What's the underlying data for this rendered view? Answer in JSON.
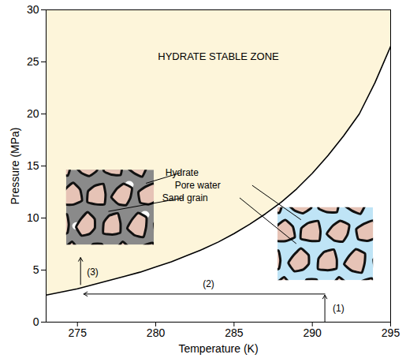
{
  "chart_data": {
    "type": "line",
    "x_label": "Temperature (K)",
    "y_label": "Pressure (MPa)",
    "xlim": [
      273,
      295
    ],
    "ylim": [
      0,
      30
    ],
    "xticks": [
      275,
      280,
      285,
      290,
      295
    ],
    "yticks": [
      0,
      5,
      10,
      15,
      20,
      25,
      30
    ],
    "grid": false,
    "color": "#000000",
    "x": [
      273,
      274,
      275,
      276,
      277,
      278,
      279,
      280,
      281,
      282,
      283,
      284,
      285,
      286,
      287,
      288,
      289,
      290,
      291,
      292,
      293,
      294,
      295
    ],
    "values": [
      2.6,
      2.9,
      3.2,
      3.6,
      4.0,
      4.4,
      4.8,
      5.3,
      5.8,
      6.4,
      7.0,
      7.7,
      8.5,
      9.4,
      10.4,
      11.5,
      12.8,
      14.3,
      16.0,
      17.9,
      20.0,
      23.0,
      26.5
    ],
    "region": {
      "label": "HYDRATE STABLE ZONE",
      "color": "#fdf5da",
      "x": 284,
      "y": 25.5
    },
    "arrows": [
      {
        "label": "(1)",
        "x1": 290.8,
        "y1": 0,
        "x2": 290.8,
        "y2": 2.6,
        "label_x": 291.3,
        "label_y": 1.3
      },
      {
        "label": "(2)",
        "x1": 290.8,
        "y1": 2.7,
        "x2": 275.4,
        "y2": 2.7,
        "label_x": 283,
        "label_y": 3.7
      },
      {
        "label": "(3)",
        "x1": 275.2,
        "y1": 3.6,
        "x2": 275.2,
        "y2": 6.2,
        "label_x": 275.6,
        "label_y": 4.8
      }
    ],
    "insets": [
      {
        "pore": "hydrate",
        "xlim": [
          274.3,
          279.9
        ],
        "ylim": [
          7.4,
          14.6
        ]
      },
      {
        "pore": "water",
        "xlim": [
          287.8,
          293.9
        ],
        "ylim": [
          4.0,
          11.0
        ]
      }
    ],
    "annotations": [
      {
        "text": "Hydrate",
        "x": 281.7,
        "y": 14.3,
        "pointers": [
          [
            279.4,
            13.3
          ]
        ]
      },
      {
        "text": "Pore water",
        "x": 282.7,
        "y": 13.1,
        "pointers": [
          [
            289.3,
            9.8
          ]
        ]
      },
      {
        "text": "Sand grain",
        "x": 281.9,
        "y": 11.9,
        "pointers": [
          [
            277.0,
            10.6
          ],
          [
            289.0,
            7.5
          ]
        ]
      }
    ]
  }
}
